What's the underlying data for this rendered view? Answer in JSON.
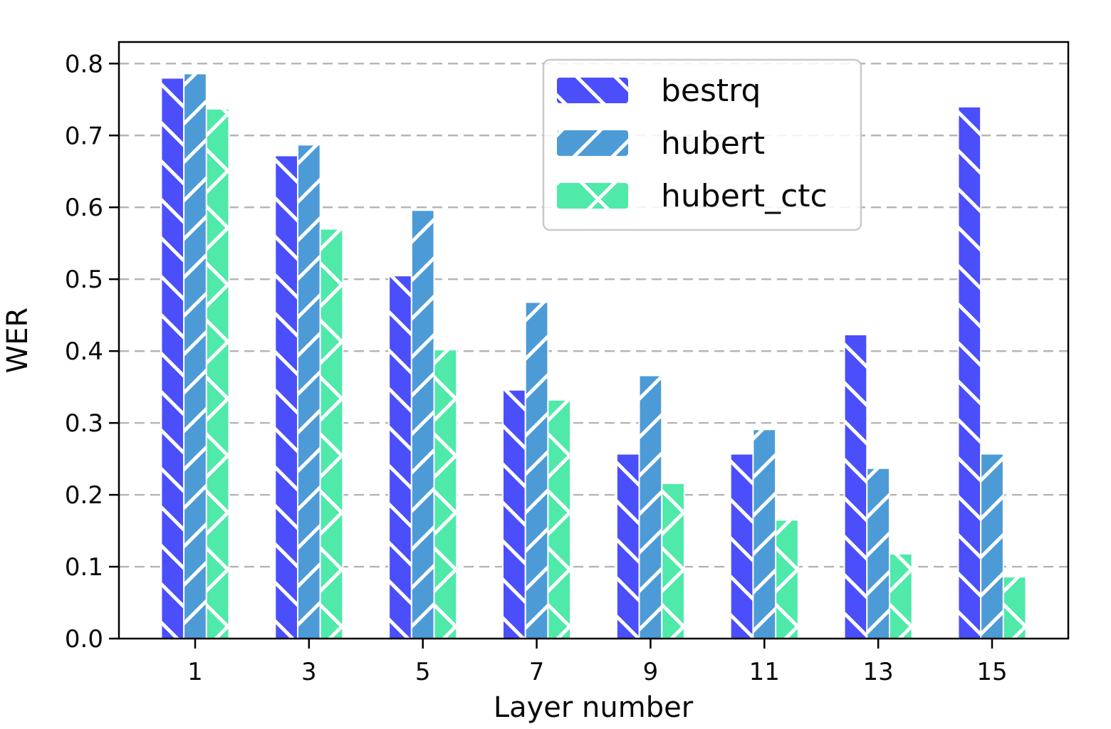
{
  "chart_data": {
    "type": "bar",
    "title": "",
    "xlabel": "Layer number",
    "ylabel": "WER",
    "categories": [
      "1",
      "3",
      "5",
      "7",
      "9",
      "11",
      "13",
      "15"
    ],
    "series": [
      {
        "name": "bestrq",
        "color": "#4b4efb",
        "hatch": "\\",
        "values": [
          0.78,
          0.672,
          0.505,
          0.346,
          0.257,
          0.257,
          0.423,
          0.74
        ]
      },
      {
        "name": "hubert",
        "color": "#4d9bd6",
        "hatch": "/",
        "values": [
          0.786,
          0.687,
          0.596,
          0.468,
          0.366,
          0.291,
          0.237,
          0.257
        ]
      },
      {
        "name": "hubert_ctc",
        "color": "#4fe9a9",
        "hatch": "x",
        "values": [
          0.737,
          0.57,
          0.402,
          0.332,
          0.216,
          0.165,
          0.118,
          0.086
        ]
      }
    ],
    "ylim": [
      0,
      0.83
    ],
    "yticks": [
      0.0,
      0.1,
      0.2,
      0.3,
      0.4,
      0.5,
      0.6,
      0.7,
      0.8
    ],
    "grid": true,
    "grid_style": "dashed",
    "grid_color": "#b4b4b4",
    "hatch_color": "#ffffff",
    "axis_color": "#000000",
    "legend_position": "upper center-right"
  }
}
